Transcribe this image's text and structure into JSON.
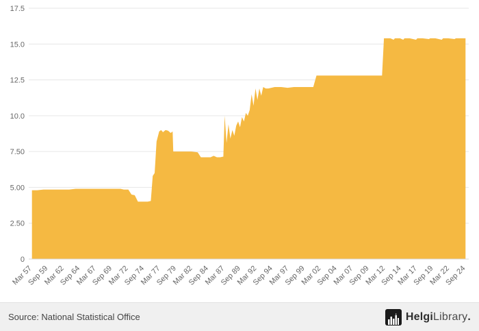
{
  "footer": {
    "source": "Source: National Statistical Office"
  },
  "logo": {
    "part1": "Helgi",
    "part2": "Library",
    "suffix": "."
  },
  "colors": {
    "area_fill": "#f5b942",
    "grid": "#e6e6e6",
    "axis_line": "#d8d8d8",
    "axis_text": "#666666",
    "footer_bg": "#f0f0f0",
    "logo_bg": "#1b1b1b"
  },
  "chart_data": {
    "type": "area",
    "title": "",
    "xlabel": "",
    "ylabel": "",
    "xlim": [
      1956.7,
      2025.2
    ],
    "ylim": [
      0,
      17.5
    ],
    "grid": true,
    "legend": false,
    "series": [
      {
        "name": "value",
        "color": "#f5b942",
        "points": [
          [
            1957.2,
            4.8
          ],
          [
            1958,
            4.8
          ],
          [
            1959,
            4.85
          ],
          [
            1960,
            4.85
          ],
          [
            1961,
            4.85
          ],
          [
            1962,
            4.85
          ],
          [
            1963,
            4.85
          ],
          [
            1964,
            4.9
          ],
          [
            1965,
            4.9
          ],
          [
            1966,
            4.9
          ],
          [
            1967,
            4.9
          ],
          [
            1968,
            4.9
          ],
          [
            1969,
            4.9
          ],
          [
            1970,
            4.9
          ],
          [
            1971,
            4.9
          ],
          [
            1971.5,
            4.85
          ],
          [
            1972.2,
            4.85
          ],
          [
            1972.7,
            4.5
          ],
          [
            1973.2,
            4.45
          ],
          [
            1973.7,
            4.0
          ],
          [
            1974.2,
            4.0
          ],
          [
            1974.7,
            4.0
          ],
          [
            1975.2,
            4.0
          ],
          [
            1975.7,
            4.05
          ],
          [
            1976.0,
            5.8
          ],
          [
            1976.3,
            6.0
          ],
          [
            1976.6,
            8.2
          ],
          [
            1977.0,
            8.9
          ],
          [
            1977.3,
            9.0
          ],
          [
            1977.6,
            8.85
          ],
          [
            1978.0,
            9.0
          ],
          [
            1978.4,
            8.95
          ],
          [
            1978.8,
            8.8
          ],
          [
            1979.1,
            8.9
          ],
          [
            1979.2,
            7.5
          ],
          [
            1980,
            7.5
          ],
          [
            1981,
            7.5
          ],
          [
            1982,
            7.5
          ],
          [
            1983,
            7.45
          ],
          [
            1983.5,
            7.1
          ],
          [
            1984,
            7.1
          ],
          [
            1985,
            7.1
          ],
          [
            1985.5,
            7.2
          ],
          [
            1986,
            7.1
          ],
          [
            1986.5,
            7.1
          ],
          [
            1987.0,
            7.15
          ],
          [
            1987.2,
            10.0
          ],
          [
            1987.5,
            8.1
          ],
          [
            1987.8,
            9.4
          ],
          [
            1988.1,
            8.4
          ],
          [
            1988.4,
            9.0
          ],
          [
            1988.7,
            8.6
          ],
          [
            1989.0,
            9.3
          ],
          [
            1989.3,
            9.6
          ],
          [
            1989.6,
            9.2
          ],
          [
            1989.9,
            9.9
          ],
          [
            1990.2,
            9.6
          ],
          [
            1990.5,
            10.2
          ],
          [
            1990.8,
            10.0
          ],
          [
            1991.1,
            10.4
          ],
          [
            1991.4,
            11.5
          ],
          [
            1991.7,
            10.7
          ],
          [
            1992.0,
            11.9
          ],
          [
            1992.3,
            11.1
          ],
          [
            1992.6,
            11.9
          ],
          [
            1992.9,
            11.4
          ],
          [
            1993.2,
            12.0
          ],
          [
            1993.6,
            11.9
          ],
          [
            1994,
            11.9
          ],
          [
            1995,
            12.0
          ],
          [
            1996,
            12.0
          ],
          [
            1997,
            11.95
          ],
          [
            1998,
            12.0
          ],
          [
            1999,
            12.0
          ],
          [
            2000,
            12.0
          ],
          [
            2001,
            12.0
          ],
          [
            2001.5,
            12.8
          ],
          [
            2002,
            12.8
          ],
          [
            2003,
            12.8
          ],
          [
            2004,
            12.8
          ],
          [
            2005,
            12.8
          ],
          [
            2006,
            12.8
          ],
          [
            2007,
            12.8
          ],
          [
            2008,
            12.8
          ],
          [
            2009,
            12.8
          ],
          [
            2010,
            12.8
          ],
          [
            2011,
            12.8
          ],
          [
            2011.7,
            12.8
          ],
          [
            2012.0,
            15.4
          ],
          [
            2012.5,
            15.4
          ],
          [
            2013,
            15.4
          ],
          [
            2013.5,
            15.3
          ],
          [
            2013.7,
            15.4
          ],
          [
            2014.5,
            15.4
          ],
          [
            2015,
            15.3
          ],
          [
            2015.2,
            15.4
          ],
          [
            2016,
            15.4
          ],
          [
            2017,
            15.3
          ],
          [
            2017.2,
            15.4
          ],
          [
            2018,
            15.4
          ],
          [
            2019,
            15.35
          ],
          [
            2019.2,
            15.4
          ],
          [
            2020,
            15.4
          ],
          [
            2021,
            15.3
          ],
          [
            2021.2,
            15.4
          ],
          [
            2022,
            15.4
          ],
          [
            2023,
            15.35
          ],
          [
            2023.2,
            15.4
          ],
          [
            2024,
            15.4
          ],
          [
            2024.7,
            15.4
          ]
        ]
      }
    ],
    "x_ticks": [
      {
        "label": "Mar 57",
        "x": 1957.2
      },
      {
        "label": "Sep 59",
        "x": 1959.7
      },
      {
        "label": "Mar 62",
        "x": 1962.2
      },
      {
        "label": "Sep 64",
        "x": 1964.7
      },
      {
        "label": "Mar 67",
        "x": 1967.2
      },
      {
        "label": "Sep 69",
        "x": 1969.7
      },
      {
        "label": "Mar 72",
        "x": 1972.2
      },
      {
        "label": "Sep 74",
        "x": 1974.7
      },
      {
        "label": "Mar 77",
        "x": 1977.2
      },
      {
        "label": "Sep 79",
        "x": 1979.7
      },
      {
        "label": "Mar 82",
        "x": 1982.2
      },
      {
        "label": "Sep 84",
        "x": 1984.7
      },
      {
        "label": "Mar 87",
        "x": 1987.2
      },
      {
        "label": "Sep 89",
        "x": 1989.7
      },
      {
        "label": "Mar 92",
        "x": 1992.2
      },
      {
        "label": "Sep 94",
        "x": 1994.7
      },
      {
        "label": "Mar 97",
        "x": 1997.2
      },
      {
        "label": "Sep 99",
        "x": 1999.7
      },
      {
        "label": "Mar 02",
        "x": 2002.2
      },
      {
        "label": "Sep 04",
        "x": 2004.7
      },
      {
        "label": "Mar 07",
        "x": 2007.2
      },
      {
        "label": "Sep 09",
        "x": 2009.7
      },
      {
        "label": "Mar 12",
        "x": 2012.2
      },
      {
        "label": "Sep 14",
        "x": 2014.7
      },
      {
        "label": "Mar 17",
        "x": 2017.2
      },
      {
        "label": "Sep 19",
        "x": 2019.7
      },
      {
        "label": "Mar 22",
        "x": 2022.2
      },
      {
        "label": "Sep 24",
        "x": 2024.7
      }
    ],
    "y_ticks": [
      {
        "label": "0",
        "y": 0
      },
      {
        "label": "2.50",
        "y": 2.5
      },
      {
        "label": "5.00",
        "y": 5.0
      },
      {
        "label": "7.50",
        "y": 7.5
      },
      {
        "label": "10.0",
        "y": 10.0
      },
      {
        "label": "12.5",
        "y": 12.5
      },
      {
        "label": "15.0",
        "y": 15.0
      },
      {
        "label": "17.5",
        "y": 17.5
      }
    ]
  }
}
